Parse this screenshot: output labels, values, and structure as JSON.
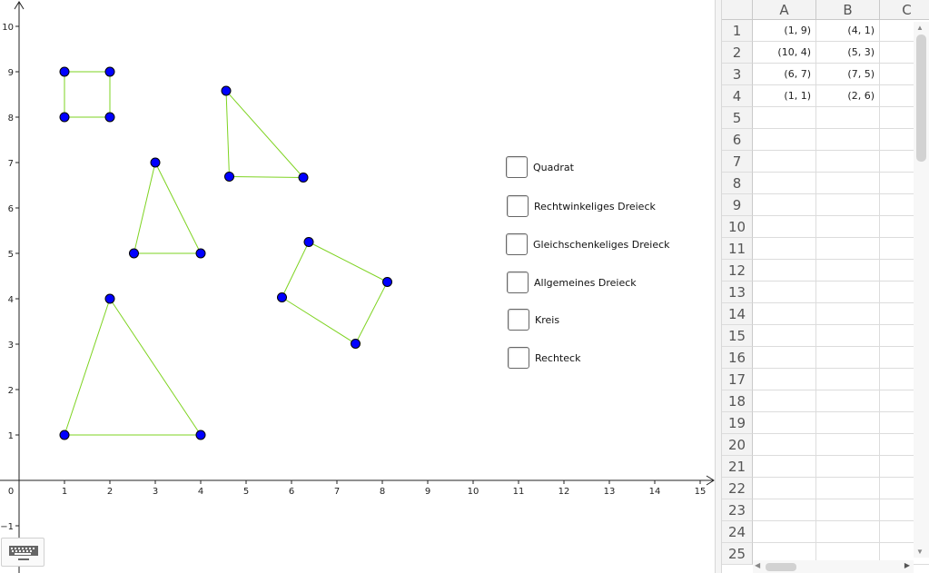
{
  "graphics": {
    "x_axis_labels": [
      "1",
      "2",
      "3",
      "4",
      "5",
      "6",
      "7",
      "8",
      "9",
      "10",
      "11",
      "12",
      "13",
      "14",
      "15"
    ],
    "y_axis_labels": [
      "10",
      "9",
      "8",
      "7",
      "6",
      "5",
      "4",
      "3",
      "2",
      "1",
      "−1"
    ],
    "origin_label": "0",
    "line_color": "#7ed321",
    "point_color": "#0000ff",
    "shapes": [
      {
        "name": "square",
        "points": [
          [
            1,
            9
          ],
          [
            2,
            9
          ],
          [
            2,
            8
          ],
          [
            1,
            8
          ]
        ]
      },
      {
        "name": "triangle-isosceles",
        "points": [
          [
            3,
            7
          ],
          [
            2.53,
            5
          ],
          [
            4,
            5
          ]
        ]
      },
      {
        "name": "triangle-right",
        "points": [
          [
            4.56,
            8.58
          ],
          [
            4.63,
            6.69
          ],
          [
            6.26,
            6.67
          ]
        ]
      },
      {
        "name": "triangle-large",
        "points": [
          [
            2,
            4
          ],
          [
            1,
            1
          ],
          [
            4,
            1
          ]
        ]
      },
      {
        "name": "rectangle",
        "points": [
          [
            6.38,
            5.25
          ],
          [
            8.11,
            4.37
          ],
          [
            7.41,
            3.01
          ],
          [
            5.79,
            4.03
          ]
        ]
      }
    ]
  },
  "checkboxes": [
    {
      "label": "Quadrat",
      "checked": false
    },
    {
      "label": "Rechtwinkeliges Dreieck",
      "checked": false
    },
    {
      "label": "Gleichschenkeliges Dreieck",
      "checked": false
    },
    {
      "label": "Allgemeines Dreieck",
      "checked": false
    },
    {
      "label": "Kreis",
      "checked": false
    },
    {
      "label": "Rechteck",
      "checked": false
    }
  ],
  "spreadsheet": {
    "columns": [
      "A",
      "B",
      "C"
    ],
    "rows": [
      "1",
      "2",
      "3",
      "4",
      "5",
      "6",
      "7",
      "8",
      "9",
      "10",
      "11",
      "12",
      "13",
      "14",
      "15",
      "16",
      "17",
      "18",
      "19",
      "20",
      "21",
      "22",
      "23",
      "24",
      "25"
    ],
    "cells": [
      [
        "(1, 9)",
        "(4, 1)"
      ],
      [
        "(10, 4)",
        "(5, 3)"
      ],
      [
        "(6, 7)",
        "(7, 5)"
      ],
      [
        "(1, 1)",
        "(2, 6)"
      ]
    ]
  },
  "icons": {
    "keyboard": "keyboard-icon"
  }
}
